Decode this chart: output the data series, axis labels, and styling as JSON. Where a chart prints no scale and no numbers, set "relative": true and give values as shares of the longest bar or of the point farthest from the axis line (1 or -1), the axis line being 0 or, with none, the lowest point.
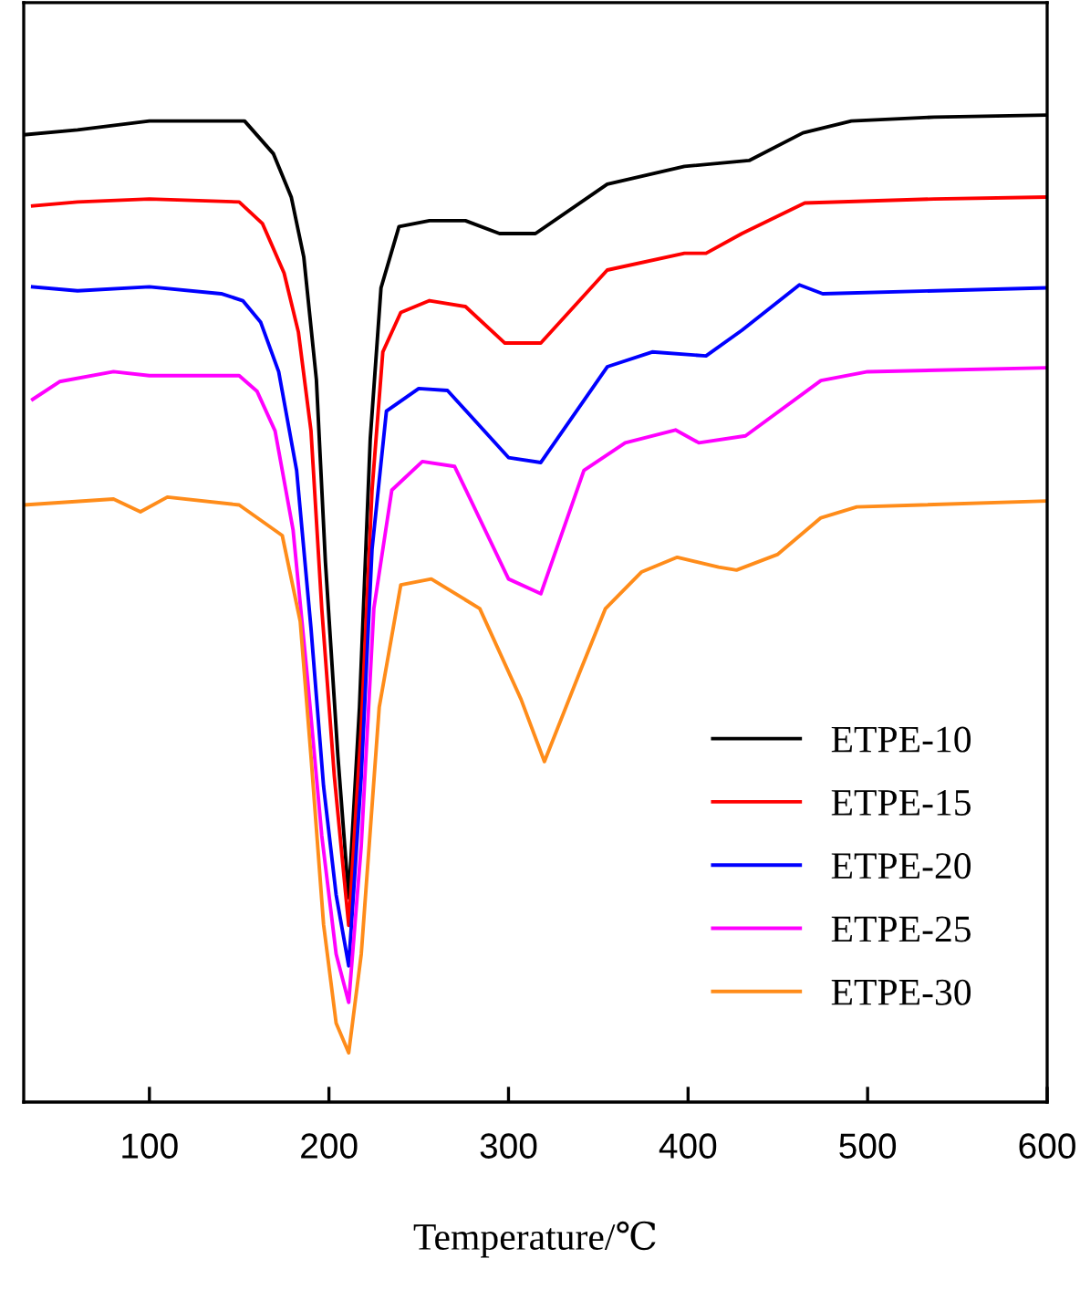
{
  "chart_data": {
    "type": "line",
    "xlabel": "Temperature/℃",
    "relative": true,
    "xlim": [
      30,
      600
    ],
    "xticks": [
      100,
      200,
      300,
      400,
      500,
      600
    ],
    "grid": false,
    "legend": "bottom right",
    "marker": "none",
    "line_style": "solid",
    "series": [
      {
        "name": "ETPE-10",
        "color": "#000000",
        "x": [
          30,
          60,
          100,
          153,
          169,
          179,
          186,
          193,
          198,
          205,
          211,
          217,
          223,
          229,
          239,
          256,
          276,
          295,
          315,
          355,
          398,
          434,
          464,
          491,
          537,
          600
        ],
        "values": [
          0.98,
          0.985,
          0.994,
          0.994,
          0.961,
          0.917,
          0.856,
          0.732,
          0.548,
          0.35,
          0.207,
          0.4,
          0.672,
          0.825,
          0.887,
          0.893,
          0.893,
          0.88,
          0.88,
          0.93,
          0.948,
          0.954,
          0.982,
          0.994,
          0.998,
          1.0
        ]
      },
      {
        "name": "ETPE-15",
        "color": "#ff0000",
        "x": [
          35,
          60,
          100,
          150,
          163,
          175,
          183,
          190,
          196,
          203,
          211,
          218,
          224,
          230,
          240,
          256,
          276,
          298,
          318,
          355,
          398,
          410,
          430,
          465,
          537,
          600
        ],
        "values": [
          0.908,
          0.912,
          0.915,
          0.912,
          0.89,
          0.84,
          0.78,
          0.68,
          0.5,
          0.33,
          0.179,
          0.38,
          0.62,
          0.76,
          0.8,
          0.812,
          0.806,
          0.769,
          0.769,
          0.843,
          0.86,
          0.86,
          0.88,
          0.911,
          0.915,
          0.917
        ]
      },
      {
        "name": "ETPE-20",
        "color": "#0000ff",
        "x": [
          35,
          60,
          100,
          140,
          152,
          162,
          172,
          182,
          190,
          197,
          204,
          211,
          218,
          224,
          232,
          250,
          266,
          300,
          318,
          355,
          380,
          410,
          430,
          462,
          475,
          600
        ],
        "values": [
          0.826,
          0.822,
          0.826,
          0.819,
          0.812,
          0.79,
          0.74,
          0.64,
          0.48,
          0.32,
          0.21,
          0.138,
          0.33,
          0.56,
          0.7,
          0.723,
          0.721,
          0.653,
          0.648,
          0.745,
          0.76,
          0.756,
          0.782,
          0.828,
          0.819,
          0.825
        ]
      },
      {
        "name": "ETPE-25",
        "color": "#ff00ff",
        "x": [
          35,
          50,
          80,
          100,
          150,
          160,
          170,
          180,
          188,
          196,
          204,
          211,
          218,
          225,
          235,
          252,
          270,
          300,
          318,
          342,
          365,
          393,
          406,
          432,
          474,
          500,
          600
        ],
        "values": [
          0.712,
          0.73,
          0.74,
          0.736,
          0.736,
          0.72,
          0.68,
          0.58,
          0.43,
          0.27,
          0.15,
          0.101,
          0.26,
          0.5,
          0.62,
          0.649,
          0.644,
          0.53,
          0.515,
          0.64,
          0.668,
          0.681,
          0.668,
          0.675,
          0.731,
          0.74,
          0.744
        ]
      },
      {
        "name": "ETPE-30",
        "color": "#ff8c1a",
        "x": [
          30,
          80,
          95,
          110,
          150,
          174,
          184,
          190,
          197,
          204,
          211,
          218,
          228,
          240,
          257,
          284,
          307,
          320,
          340,
          354,
          374,
          394,
          417,
          427,
          450,
          474,
          494,
          600
        ],
        "values": [
          0.605,
          0.611,
          0.598,
          0.613,
          0.605,
          0.574,
          0.487,
          0.35,
          0.18,
          0.08,
          0.05,
          0.15,
          0.4,
          0.524,
          0.53,
          0.5,
          0.408,
          0.345,
          0.437,
          0.5,
          0.537,
          0.552,
          0.542,
          0.539,
          0.555,
          0.592,
          0.603,
          0.609
        ]
      }
    ]
  }
}
